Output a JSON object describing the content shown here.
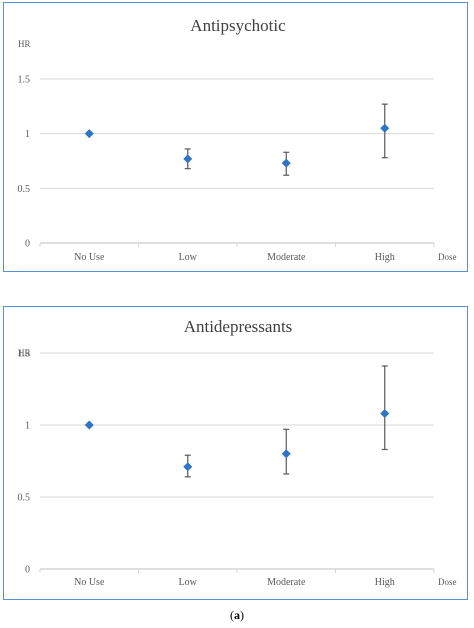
{
  "caption": {
    "open": "(",
    "letter": "a",
    "close": ")"
  },
  "chart_data": [
    {
      "type": "scatter",
      "title": "Antipsychotic",
      "ylabel": "HR",
      "xlabel": "Dose",
      "categories": [
        "No Use",
        "Low",
        "Moderate",
        "High"
      ],
      "yticks": [
        "0",
        "0.5",
        "1",
        "1.5"
      ],
      "ylim": [
        0,
        1.5
      ],
      "grid": true,
      "marker": "diamond",
      "color": "#2e75c6",
      "errorbar_color": "#595959",
      "series": [
        {
          "values": [
            1.0,
            0.77,
            0.73,
            1.05
          ],
          "lower": [
            null,
            0.68,
            0.62,
            0.78
          ],
          "upper": [
            null,
            0.86,
            0.83,
            1.27
          ]
        }
      ]
    },
    {
      "type": "scatter",
      "title": "Antidepressants",
      "ylabel": "HR",
      "xlabel": "Dose",
      "categories": [
        "No Use",
        "Low",
        "Moderate",
        "High"
      ],
      "yticks": [
        "0",
        "0.5",
        "1",
        "1.5"
      ],
      "ylim": [
        0,
        1.5
      ],
      "grid": true,
      "marker": "diamond",
      "color": "#2e75c6",
      "errorbar_color": "#595959",
      "series": [
        {
          "values": [
            1.0,
            0.71,
            0.8,
            1.08
          ],
          "lower": [
            null,
            0.64,
            0.66,
            0.83
          ],
          "upper": [
            null,
            0.79,
            0.97,
            1.41
          ]
        }
      ]
    }
  ]
}
